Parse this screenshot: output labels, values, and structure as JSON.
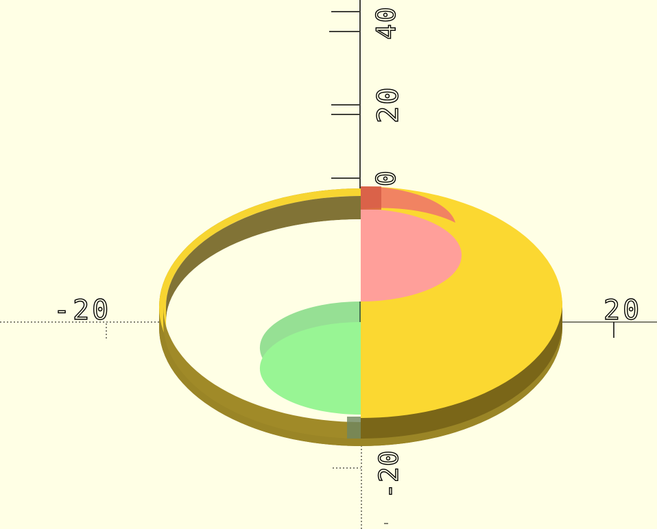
{
  "viewport": {
    "background": "#ffffe5"
  },
  "axes": {
    "x_labels": [
      "-20",
      "20"
    ],
    "z_labels": [
      "40",
      "20",
      "0",
      "-20"
    ],
    "axis_color": "#000000",
    "negative_axis_style": "dotted"
  },
  "model": {
    "ring_color": "#f7d531",
    "half_disk_color": "#fbd831",
    "top_circle_color": "#ff8a80",
    "bottom_circle_color": "#90ee90",
    "shadow_color": "#4a3d10"
  }
}
